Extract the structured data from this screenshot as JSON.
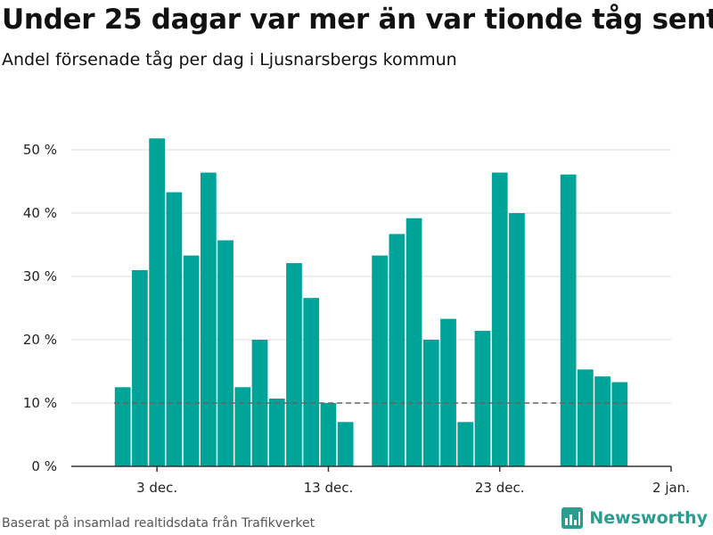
{
  "header": {
    "title": "Under 25 dagar var mer än var tionde tåg sent",
    "subtitle": "Andel försenade tåg per dag i Ljusnarsbergs kommun"
  },
  "footer": {
    "source": "Baserat på insamlad realtidsdata från Trafikverket",
    "brand": "Newsworthy"
  },
  "colors": {
    "bar": "#00a398",
    "grid": "#dddddd",
    "reference_line": "#666666",
    "brand": "#2a9d8f"
  },
  "chart_data": {
    "type": "bar",
    "title": "Under 25 dagar var mer än var tionde tåg sent",
    "subtitle": "Andel försenade tåg per dag i Ljusnarsbergs kommun",
    "xlabel": "",
    "ylabel": "",
    "x_range": [
      "2022-11-28",
      "2023-01-02"
    ],
    "ylim": [
      0,
      52
    ],
    "yticks": [
      0,
      10,
      20,
      30,
      40,
      50
    ],
    "ytick_labels": [
      "0 %",
      "10 %",
      "20 %",
      "30 %",
      "40 %",
      "50 %"
    ],
    "xticks": [
      "2022-12-03",
      "2022-12-13",
      "2022-12-23",
      "2023-01-02"
    ],
    "xtick_labels": [
      "3 dec.",
      "13 dec.",
      "23 dec.",
      "2 jan."
    ],
    "grid": true,
    "reference_line": {
      "y": 10,
      "style": "dashed",
      "x_start": "2022-12-01",
      "x_end": "2022-12-30"
    },
    "data": [
      {
        "date": "2022-12-01",
        "value": 12.5
      },
      {
        "date": "2022-12-02",
        "value": 31.0
      },
      {
        "date": "2022-12-03",
        "value": 51.8
      },
      {
        "date": "2022-12-04",
        "value": 43.3
      },
      {
        "date": "2022-12-05",
        "value": 33.3
      },
      {
        "date": "2022-12-06",
        "value": 46.4
      },
      {
        "date": "2022-12-07",
        "value": 35.7
      },
      {
        "date": "2022-12-08",
        "value": 12.5
      },
      {
        "date": "2022-12-09",
        "value": 20.0
      },
      {
        "date": "2022-12-10",
        "value": 10.7
      },
      {
        "date": "2022-12-11",
        "value": 32.1
      },
      {
        "date": "2022-12-12",
        "value": 26.6
      },
      {
        "date": "2022-12-13",
        "value": 10.0
      },
      {
        "date": "2022-12-14",
        "value": 7.0
      },
      {
        "date": "2022-12-16",
        "value": 33.3
      },
      {
        "date": "2022-12-17",
        "value": 36.7
      },
      {
        "date": "2022-12-18",
        "value": 39.2
      },
      {
        "date": "2022-12-19",
        "value": 20.0
      },
      {
        "date": "2022-12-20",
        "value": 23.3
      },
      {
        "date": "2022-12-21",
        "value": 7.0
      },
      {
        "date": "2022-12-22",
        "value": 21.4
      },
      {
        "date": "2022-12-23",
        "value": 46.4
      },
      {
        "date": "2022-12-24",
        "value": 40.0
      },
      {
        "date": "2022-12-27",
        "value": 46.1
      },
      {
        "date": "2022-12-28",
        "value": 15.3
      },
      {
        "date": "2022-12-29",
        "value": 14.2
      },
      {
        "date": "2022-12-30",
        "value": 13.3
      }
    ]
  }
}
